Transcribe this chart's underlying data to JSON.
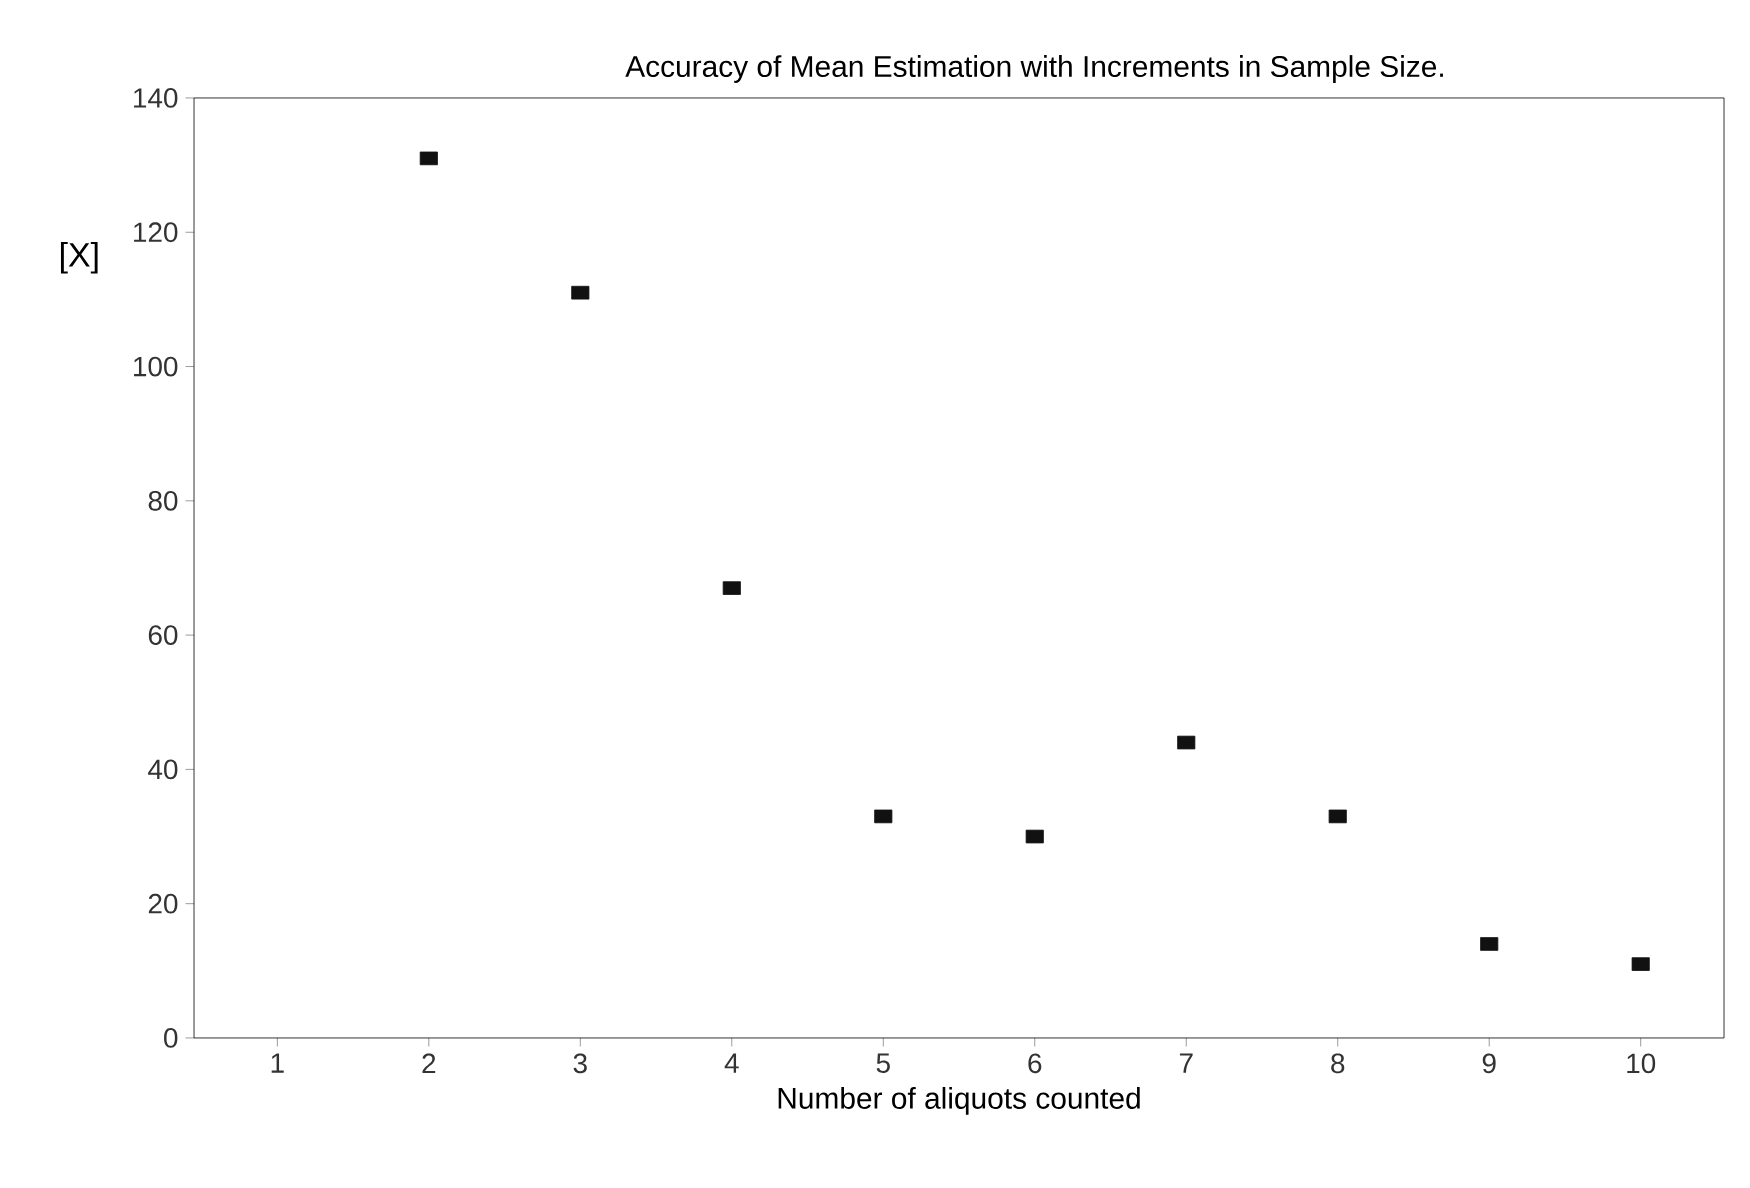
{
  "chart_data": {
    "type": "scatter",
    "title": "Accuracy of Mean Estimation with Increments in Sample Size.",
    "xlabel": "Number of aliquots counted",
    "ylabel": "[X]",
    "x": [
      2,
      3,
      4,
      5,
      6,
      7,
      8,
      9,
      10
    ],
    "values": [
      131,
      111,
      67,
      33,
      30,
      44,
      33,
      14,
      11
    ],
    "color": "#111111",
    "marker": "square",
    "xlim": [
      0.45,
      10.55
    ],
    "xticks": [
      1,
      2,
      3,
      4,
      5,
      6,
      7,
      8,
      9,
      10
    ],
    "ylim": [
      0,
      140
    ],
    "yticks": [
      0,
      20,
      40,
      60,
      80,
      100,
      120,
      140
    ],
    "grid": false
  }
}
